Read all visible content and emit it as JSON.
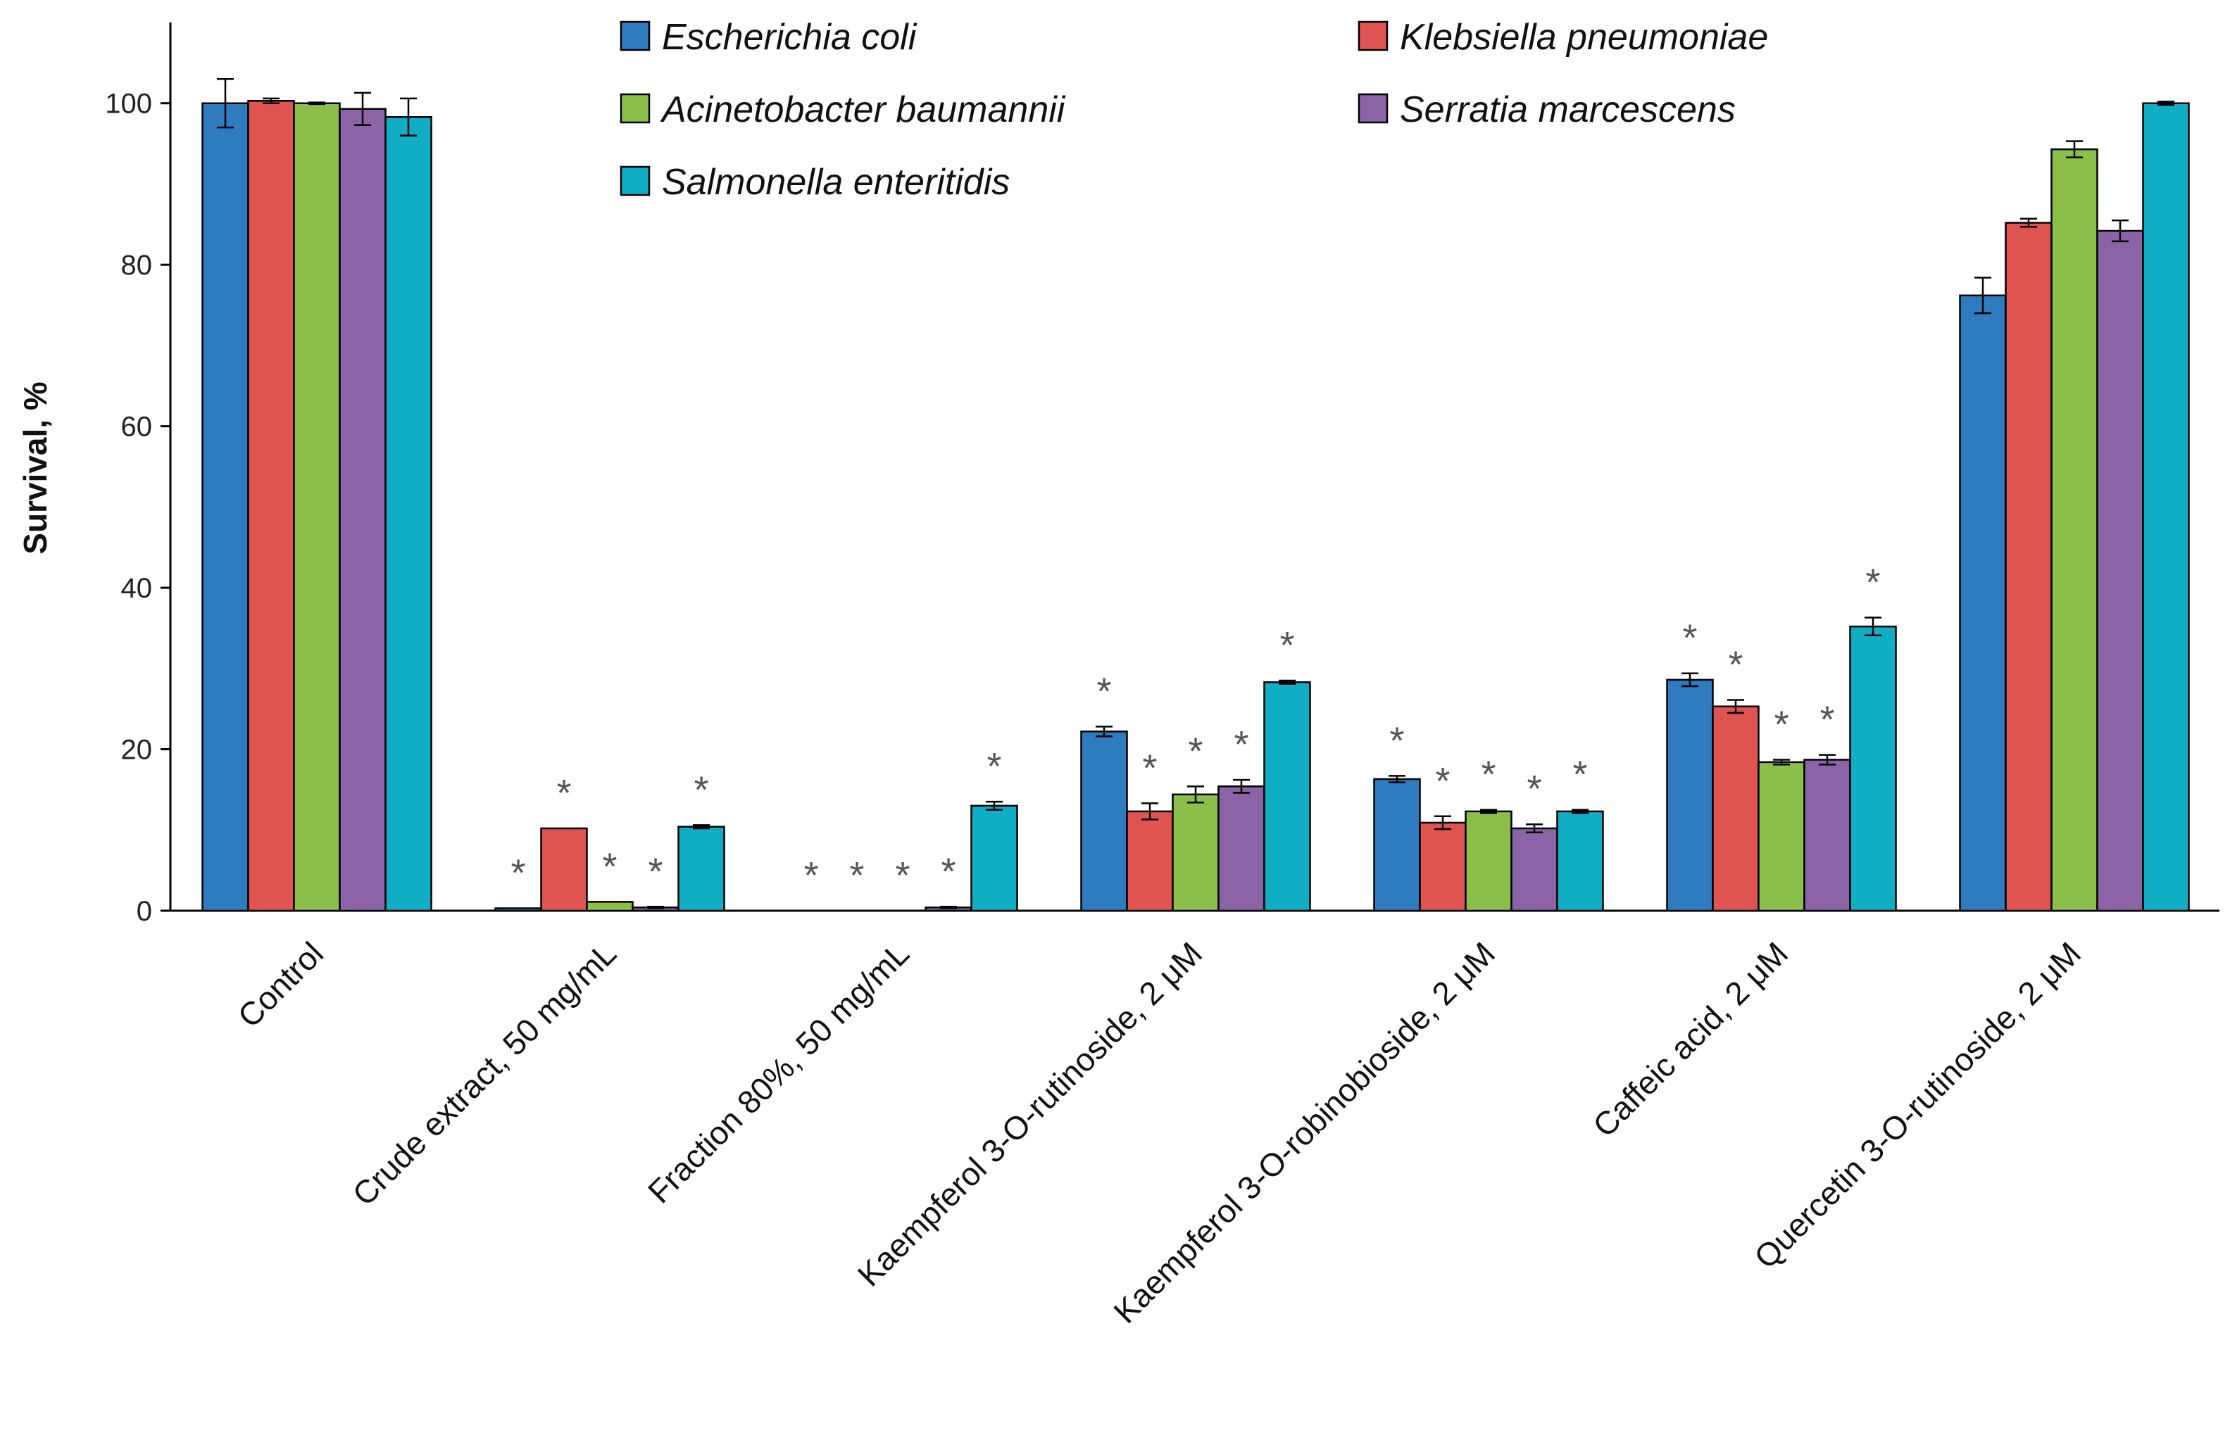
{
  "chart_data": {
    "type": "bar",
    "title": "",
    "xlabel": "",
    "ylabel": "Survival, %",
    "ylim": [
      0,
      110
    ],
    "yticks": [
      0,
      20,
      40,
      60,
      80,
      100
    ],
    "grid": false,
    "legend_position": "top",
    "significance_marker": "*",
    "categories": [
      "Control",
      "Crude extract, 50 mg/mL",
      "Fraction 80%, 50 mg/mL",
      "Kaempferol 3-O-rutinoside, 2 μM",
      "Kaempferol 3-O-robinobioside, 2 μM",
      "Caffeic acid, 2 μM",
      "Quercetin 3-O-rutinoside, 2 μM"
    ],
    "series": [
      {
        "name": "Escherichia coli",
        "color": "#2e7bbf",
        "values": [
          100,
          0.3,
          0,
          22.2,
          16.3,
          28.6,
          76.2
        ],
        "errors": [
          3,
          0,
          0,
          0.6,
          0.4,
          0.8,
          2.2
        ],
        "significant": [
          false,
          true,
          true,
          true,
          true,
          true,
          false
        ]
      },
      {
        "name": "Klebsiella pneumoniae",
        "color": "#df5350",
        "values": [
          100.3,
          10.2,
          0,
          12.3,
          10.9,
          25.3,
          85.2
        ],
        "errors": [
          0.3,
          0,
          0,
          1,
          0.8,
          0.8,
          0.5
        ],
        "significant": [
          false,
          true,
          true,
          true,
          true,
          true,
          false
        ]
      },
      {
        "name": "Acinetobacter baumannii",
        "color": "#8cbf4a",
        "values": [
          100,
          1.1,
          0,
          14.4,
          12.3,
          18.4,
          94.3
        ],
        "errors": [
          0.1,
          0,
          0,
          1,
          0.2,
          0.3,
          1
        ],
        "significant": [
          false,
          true,
          true,
          true,
          true,
          true,
          false
        ]
      },
      {
        "name": "Serratia marcescens",
        "color": "#8b64a8",
        "values": [
          99.3,
          0.4,
          0.4,
          15.4,
          10.2,
          18.7,
          84.2
        ],
        "errors": [
          2,
          0.1,
          0.1,
          0.8,
          0.5,
          0.6,
          1.3
        ],
        "significant": [
          false,
          true,
          true,
          true,
          true,
          true,
          false
        ]
      },
      {
        "name": "Salmonella enteritidis",
        "color": "#10adc5",
        "values": [
          98.3,
          10.4,
          13,
          28.3,
          12.3,
          35.2,
          100
        ],
        "errors": [
          2.3,
          0.2,
          0.5,
          0.2,
          0.2,
          1.1,
          0.2
        ],
        "significant": [
          false,
          true,
          true,
          true,
          true,
          true,
          false
        ]
      }
    ]
  }
}
